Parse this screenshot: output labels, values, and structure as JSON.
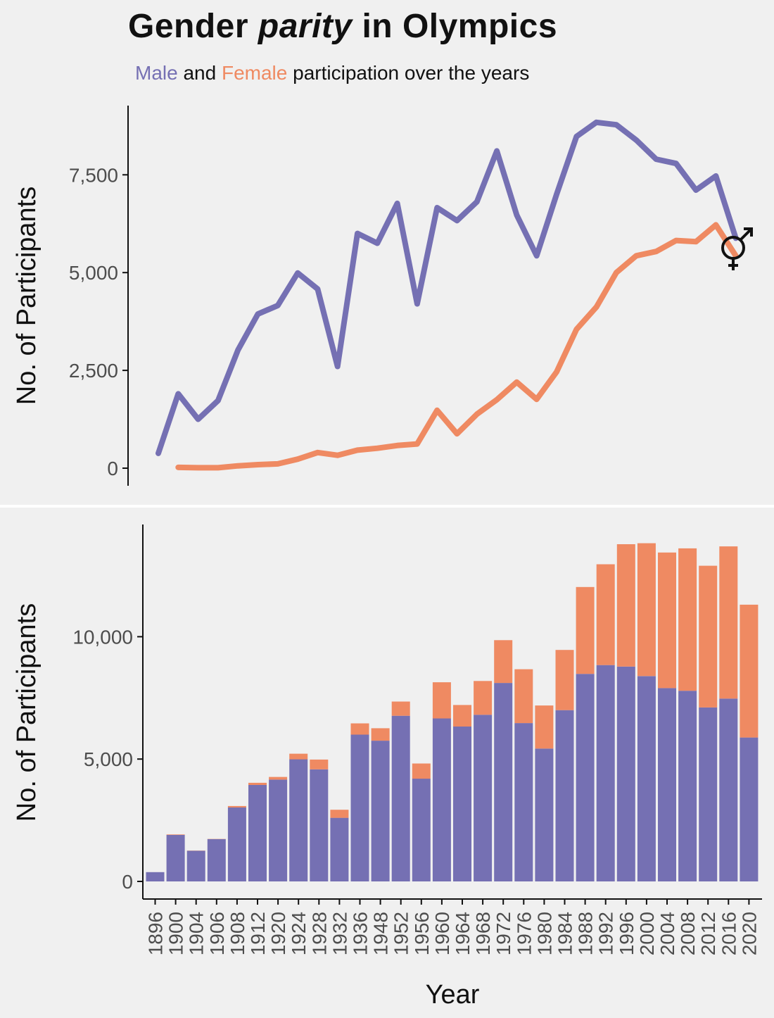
{
  "title": {
    "before": "Gender ",
    "italic": "parity",
    "after": " in Olympics"
  },
  "subtitle": {
    "male": "Male",
    "and": "and",
    "female": "Female",
    "rest": "participation over the years"
  },
  "colors": {
    "male": "#7570b3",
    "female": "#ef8a62",
    "background": "#f0f0f0",
    "axis": "#111111",
    "divider": "#ffffff"
  },
  "icons": {
    "gender_symbol": "male-female-symbol-icon"
  },
  "chart_data": [
    {
      "type": "line",
      "ylabel": "No. of Participants",
      "xlabel": "",
      "ylim": [
        0,
        9000
      ],
      "yticks": [
        0,
        2500,
        5000,
        7500
      ],
      "ytick_labels": [
        "0",
        "2,500",
        "5,000",
        "7,500"
      ],
      "grid": false,
      "x": [
        1896,
        1900,
        1904,
        1906,
        1908,
        1912,
        1920,
        1924,
        1928,
        1932,
        1936,
        1948,
        1952,
        1956,
        1960,
        1964,
        1968,
        1972,
        1976,
        1980,
        1984,
        1988,
        1992,
        1996,
        2000,
        2004,
        2008,
        2012,
        2016,
        2020
      ],
      "series": [
        {
          "name": "Male",
          "values": [
            380,
            1900,
            1250,
            1730,
            3020,
            3940,
            4160,
            4990,
            4580,
            2600,
            6000,
            5750,
            6770,
            4200,
            6660,
            6330,
            6810,
            8110,
            6470,
            5430,
            7000,
            8480,
            8840,
            8780,
            8390,
            7900,
            7790,
            7110,
            7470,
            5880
          ]
        },
        {
          "name": "Female",
          "values": null,
          "values_by_x": [
            null,
            20,
            10,
            10,
            60,
            90,
            110,
            230,
            400,
            330,
            460,
            510,
            580,
            620,
            1480,
            880,
            1380,
            1750,
            2200,
            1760,
            2460,
            3550,
            4120,
            5000,
            5430,
            5540,
            5820,
            5790,
            6220,
            5430
          ]
        }
      ]
    },
    {
      "type": "bar",
      "stacked": true,
      "xlabel": "Year",
      "ylabel": "No. of Participants",
      "ylim": [
        0,
        14000
      ],
      "yticks": [
        0,
        5000,
        10000
      ],
      "ytick_labels": [
        "0",
        "5,000",
        "10,000"
      ],
      "grid": false,
      "categories": [
        "1896",
        "1900",
        "1904",
        "1906",
        "1908",
        "1912",
        "1920",
        "1924",
        "1928",
        "1932",
        "1936",
        "1948",
        "1952",
        "1956",
        "1960",
        "1964",
        "1968",
        "1972",
        "1976",
        "1980",
        "1984",
        "1988",
        "1992",
        "1996",
        "2000",
        "2004",
        "2008",
        "2012",
        "2016",
        "2020"
      ],
      "series": [
        {
          "name": "Male",
          "values": [
            380,
            1900,
            1250,
            1730,
            3020,
            3940,
            4160,
            4990,
            4580,
            2600,
            6000,
            5750,
            6770,
            4200,
            6660,
            6330,
            6810,
            8110,
            6470,
            5430,
            7000,
            8480,
            8840,
            8780,
            8390,
            7900,
            7790,
            7110,
            7470,
            5880
          ]
        },
        {
          "name": "Female",
          "values": [
            0,
            20,
            10,
            10,
            60,
            90,
            110,
            230,
            400,
            330,
            460,
            510,
            580,
            620,
            1480,
            880,
            1380,
            1750,
            2200,
            1760,
            2460,
            3550,
            4120,
            5000,
            5430,
            5540,
            5820,
            5790,
            6220,
            5430
          ]
        }
      ]
    }
  ]
}
